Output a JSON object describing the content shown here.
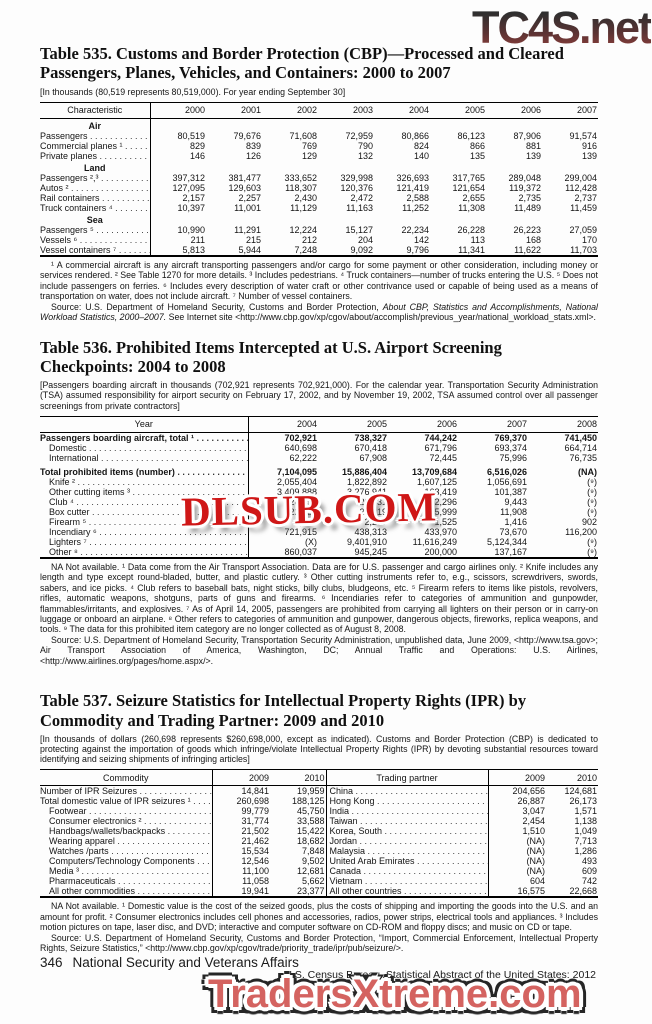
{
  "watermarks": {
    "top": "TC4S.net",
    "middle": "DLSUB.COM",
    "bottom": "TradersXtreme.com"
  },
  "table535": {
    "title": "Table 535. Customs and Border Protection (CBP)—Processed and Cleared Passengers, Planes, Vehicles, and Containers: 2000 to 2007",
    "bracket": "[In thousands (80,519 represents 80,519,000). For year ending September 30]",
    "col_header": "Characteristic",
    "years": [
      "2000",
      "2001",
      "2002",
      "2003",
      "2004",
      "2005",
      "2006",
      "2007"
    ],
    "groups": [
      {
        "name": "Air",
        "rows": [
          {
            "label": "Passengers",
            "values": [
              "80,519",
              "79,676",
              "71,608",
              "72,959",
              "80,866",
              "86,123",
              "87,906",
              "91,574"
            ]
          },
          {
            "label": "Commercial planes ¹",
            "values": [
              "829",
              "839",
              "769",
              "790",
              "824",
              "866",
              "881",
              "916"
            ]
          },
          {
            "label": "Private planes",
            "values": [
              "146",
              "126",
              "129",
              "132",
              "140",
              "135",
              "139",
              "139"
            ]
          }
        ]
      },
      {
        "name": "Land",
        "rows": [
          {
            "label": "Passengers ²,³",
            "values": [
              "397,312",
              "381,477",
              "333,652",
              "329,998",
              "326,693",
              "317,765",
              "289,048",
              "299,004"
            ]
          },
          {
            "label": "Autos ²",
            "values": [
              "127,095",
              "129,603",
              "118,307",
              "120,376",
              "121,419",
              "121,654",
              "119,372",
              "112,428"
            ]
          },
          {
            "label": "Rail containers",
            "values": [
              "2,157",
              "2,257",
              "2,430",
              "2,472",
              "2,588",
              "2,655",
              "2,735",
              "2,737"
            ]
          },
          {
            "label": "Truck containers ⁴",
            "values": [
              "10,397",
              "11,001",
              "11,129",
              "11,163",
              "11,252",
              "11,308",
              "11,489",
              "11,459"
            ]
          }
        ]
      },
      {
        "name": "Sea",
        "rows": [
          {
            "label": "Passengers ⁵",
            "values": [
              "10,990",
              "11,291",
              "12,224",
              "15,127",
              "22,234",
              "26,228",
              "26,223",
              "27,059"
            ]
          },
          {
            "label": "Vessels ⁶",
            "values": [
              "211",
              "215",
              "212",
              "204",
              "142",
              "113",
              "168",
              "170"
            ]
          },
          {
            "label": "Vessel containers ⁷",
            "values": [
              "5,813",
              "5,944",
              "7,248",
              "9,092",
              "9,796",
              "11,341",
              "11,622",
              "11,703"
            ]
          }
        ]
      }
    ],
    "footnote": "¹ A commercial aircraft is any aircraft transporting passengers and/or cargo for some payment or other consideration, including money or services rendered. ² See Table 1270 for more details. ³ Includes pedestrians. ⁴ Truck containers—number of trucks entering the U.S. ⁵ Does not include passengers on ferries. ⁶ Includes every description of water craft or other contrivance used or capable of being used as a means of transportation on water, does not include aircraft. ⁷ Number of vessel containers.",
    "source_prefix": "Source: U.S. Department of Homeland Security, Customs and Border Protection, ",
    "source_italic": "About CBP, Statistics and Accomplishments, National Workload Statistics, 2000–2007.",
    "source_suffix": " See Internet site <http://www.cbp.gov/xp/cgov/about/accomplish/previous_year/national_workload_stats.xml>."
  },
  "table536": {
    "title": "Table 536. Prohibited Items Intercepted at U.S. Airport Screening Checkpoints: 2004 to 2008",
    "bracket": "[Passengers boarding aircraft in thousands (702,921 represents 702,921,000). For the calendar year. Transportation Security Administration (TSA) assumed responsibility for airport security on February 17, 2002, and by November 19, 2002, TSA assumed control over all passenger screenings from private contractors]",
    "col_header": "Year",
    "years": [
      "2004",
      "2005",
      "2006",
      "2007",
      "2008"
    ],
    "rows": [
      {
        "label": "Passengers boarding aircraft, total ¹",
        "bold": true,
        "values": [
          "702,921",
          "738,327",
          "744,242",
          "769,370",
          "741,450"
        ]
      },
      {
        "label": "Domestic",
        "indent": true,
        "values": [
          "640,698",
          "670,418",
          "671,796",
          "693,374",
          "664,714"
        ]
      },
      {
        "label": "International",
        "indent": true,
        "values": [
          "62,222",
          "67,908",
          "72,445",
          "75,996",
          "76,735"
        ]
      },
      {
        "label": "Total prohibited items (number)",
        "bold": true,
        "gap": true,
        "values": [
          "7,104,095",
          "15,886,404",
          "13,709,684",
          "6,516,026",
          "(NA)"
        ]
      },
      {
        "label": "Knife ²",
        "indent": true,
        "values": [
          "2,055,404",
          "1,822,892",
          "1,607,125",
          "1,056,691",
          "(⁹)"
        ]
      },
      {
        "label": "Other cutting items ³",
        "indent": true,
        "values": [
          "3,409,888",
          "3,276,941",
          "163,419",
          "101,387",
          "(⁹)"
        ]
      },
      {
        "label": "Club ⁴",
        "indent": true,
        "values": [
          "28,998",
          "20,531",
          "12,296",
          "9,443",
          "(⁹)"
        ]
      },
      {
        "label": "Box cutter",
        "indent": true,
        "values": [
          "22,430",
          "21,319",
          "15,999",
          "11,908",
          "(⁹)"
        ]
      },
      {
        "label": "Firearm ⁵",
        "indent": true,
        "values": [
          "2,474",
          "2,217",
          "1,525",
          "1,416",
          "902"
        ]
      },
      {
        "label": "Incendiary ⁶",
        "indent": true,
        "values": [
          "721,915",
          "438,313",
          "433,970",
          "73,670",
          "116,200"
        ]
      },
      {
        "label": "Lighters ⁷",
        "indent": true,
        "values": [
          "(X)",
          "9,401,910",
          "11,616,249",
          "5,124,344",
          "(⁹)"
        ]
      },
      {
        "label": "Other ⁸",
        "indent": true,
        "values": [
          "860,037",
          "945,245",
          "200,000",
          "137,167",
          "(⁹)"
        ]
      }
    ],
    "footnote": "NA Not available. ¹ Data come from the Air Transport Association. Data are for U.S. passenger and cargo airlines only. ² Knife includes any length and type except round-bladed, butter, and plastic cutlery. ³ Other cutting instruments refer to, e.g., scissors, screwdrivers, swords, sabers, and ice picks. ⁴ Club refers to baseball bats, night sticks, billy clubs, bludgeons, etc. ⁵ Firearm refers to items like pistols, revolvers, rifles, automatic weapons, shotguns, parts of guns and firearms. ⁶ Incendiaries refer to categories of ammunition and gunpowder, flammables/irritants, and explosives. ⁷ As of April 14, 2005, passengers are prohibited from carrying all lighters on their person or in carry-on luggage or onboard an airplane. ⁸ Other refers to categories of ammunition and gunpower, dangerous objects, fireworks, replica weapons, and tools. ⁹ The data for this prohibited item category are no longer collected as of August 8, 2008.",
    "source": "Source: U.S. Department of Homeland Security, Transportation Security Administration, unpublished data, June 2009, <http://www.tsa.gov>; Air Transport Association of America, Washington, DC; Annual Traffic and Operations: U.S. Airlines, <http://www.airlines.org/pages/home.aspx/>."
  },
  "table537": {
    "title": "Table 537. Seizure Statistics for Intellectual Property Rights (IPR) by Commodity and Trading Partner: 2009 and 2010",
    "bracket": "[In thousands of dollars (260,698 represents $260,698,000, except as indicated). Customs and Border Protection (CBP) is dedicated to protecting against the importation of goods which infringe/violate Intellectual Property Rights (IPR) by devoting substantial resources toward identifying and seizing shipments of infringing articles]",
    "commodity_header": "Commodity",
    "partner_header": "Trading partner",
    "years": [
      "2009",
      "2010"
    ],
    "commodity_rows": [
      {
        "label": "Number of IPR Seizures",
        "values": [
          "14,841",
          "19,959"
        ]
      },
      {
        "label": "Total domestic value of IPR seizures ¹",
        "values": [
          "260,698",
          "188,125"
        ]
      },
      {
        "label": "Footwear",
        "indent": true,
        "values": [
          "99,779",
          "45,750"
        ]
      },
      {
        "label": "Consumer electronics ²",
        "indent": true,
        "values": [
          "31,774",
          "33,588"
        ]
      },
      {
        "label": "Handbags/wallets/backpacks",
        "indent": true,
        "values": [
          "21,502",
          "15,422"
        ]
      },
      {
        "label": "Wearing apparel",
        "indent": true,
        "values": [
          "21,462",
          "18,682"
        ]
      },
      {
        "label": "Watches /parts",
        "indent": true,
        "values": [
          "15,534",
          "7,848"
        ]
      },
      {
        "label": "Computers/Technology Components",
        "indent": true,
        "values": [
          "12,546",
          "9,502"
        ]
      },
      {
        "label": "Media ³",
        "indent": true,
        "values": [
          "11,100",
          "12,681"
        ]
      },
      {
        "label": "Pharmaceuticals",
        "indent": true,
        "values": [
          "11,058",
          "5,662"
        ]
      },
      {
        "label": "All other commodities",
        "indent": true,
        "values": [
          "19,941",
          "23,377"
        ]
      }
    ],
    "partner_rows": [
      {
        "label": "China",
        "values": [
          "204,656",
          "124,681"
        ]
      },
      {
        "label": "Hong Kong",
        "values": [
          "26,887",
          "26,173"
        ]
      },
      {
        "label": "India",
        "values": [
          "3,047",
          "1,571"
        ]
      },
      {
        "label": "Taiwan",
        "values": [
          "2,454",
          "1,138"
        ]
      },
      {
        "label": "Korea, South",
        "values": [
          "1,510",
          "1,049"
        ]
      },
      {
        "label": "Jordan",
        "values": [
          "(NA)",
          "7,713"
        ]
      },
      {
        "label": "Malaysia",
        "values": [
          "(NA)",
          "1,286"
        ]
      },
      {
        "label": "United Arab Emirates",
        "values": [
          "(NA)",
          "493"
        ]
      },
      {
        "label": "Canada",
        "values": [
          "(NA)",
          "609"
        ]
      },
      {
        "label": "Vietnam",
        "values": [
          "604",
          "742"
        ]
      },
      {
        "label": "All other countries",
        "values": [
          "16,575",
          "22,668"
        ]
      }
    ],
    "footnote": "NA Not available. ¹ Domestic value is the cost of the seized goods, plus the costs of shipping and importing the goods into the U.S. and an amount for profit. ² Consumer electronics includes cell phones and accessories, radios, power strips, electrical tools and appliances. ³ Includes motion pictures on tape, laser disc, and DVD; interactive and computer software on CD-ROM and floppy discs; and music on CD or tape.",
    "source": "Source: U.S. Department of Homeland Security, Customs and Border Protection, “Import, Commercial Enforcement, Intellectual Property Rights, Seizure Statistics,” <http://www.cbp.gov/xp/cgov/trade/priority_trade/ipr/pub/seizure/>."
  },
  "footer": {
    "page_number": "346",
    "section_title": "National Security and Veterans Affairs",
    "source_line": "U.S. Census Bureau, Statistical Abstract of the United States: 2012"
  }
}
